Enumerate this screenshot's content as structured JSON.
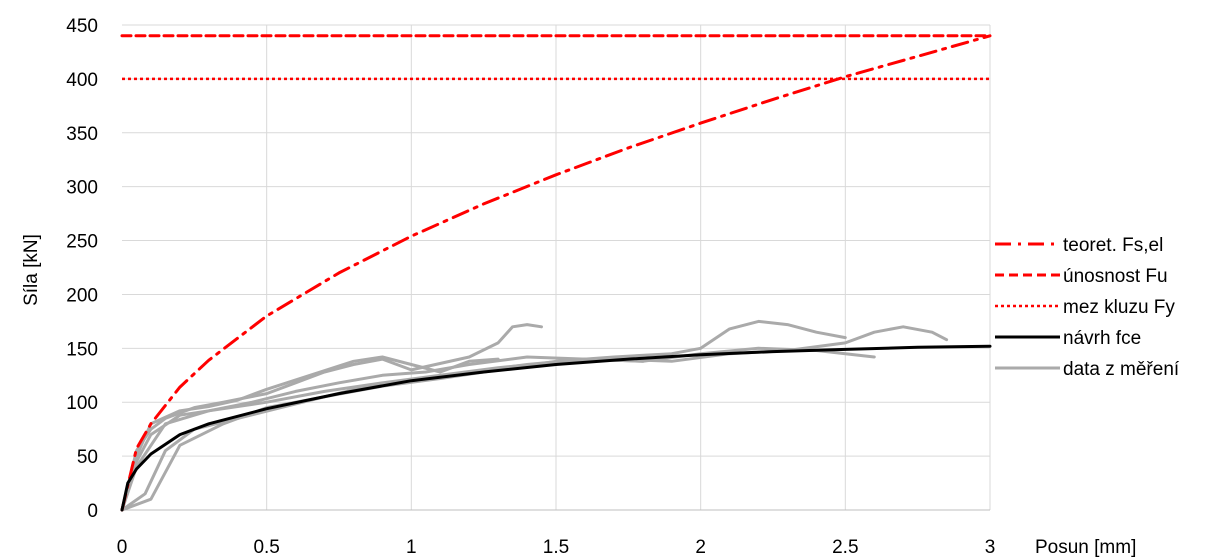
{
  "chart_data": {
    "type": "line",
    "xlabel": "Posun [mm]",
    "ylabel": "Síla [kN]",
    "xlim": [
      0,
      3
    ],
    "ylim": [
      0,
      450
    ],
    "xticks": [
      "0",
      "0.5",
      "1",
      "1.5",
      "2",
      "2.5",
      "3"
    ],
    "yticks": [
      "0",
      "50",
      "100",
      "150",
      "200",
      "250",
      "300",
      "350",
      "400",
      "450"
    ],
    "grid": true,
    "legend_position": "right",
    "series": [
      {
        "name": "teoret. Fs,el",
        "style": "dash-dot",
        "color": "#ff0000",
        "x": [
          0,
          0.05,
          0.1,
          0.2,
          0.3,
          0.5,
          0.75,
          1,
          1.25,
          1.5,
          1.75,
          2,
          2.25,
          2.5,
          2.75,
          3
        ],
        "y": [
          0,
          57,
          80,
          114,
          139,
          180,
          220,
          254,
          284,
          311,
          336,
          359,
          381,
          402,
          421,
          440
        ]
      },
      {
        "name": "únosnost Fu",
        "style": "dashed",
        "color": "#ff0000",
        "x": [
          0,
          3
        ],
        "y": [
          440,
          440
        ]
      },
      {
        "name": "mez kluzu Fy",
        "style": "dotted",
        "color": "#ff0000",
        "x": [
          0,
          3
        ],
        "y": [
          400,
          400
        ]
      },
      {
        "name": "návrh fce",
        "style": "solid",
        "color": "#000000",
        "x": [
          0,
          0.02,
          0.05,
          0.1,
          0.2,
          0.3,
          0.5,
          0.75,
          1,
          1.25,
          1.5,
          1.75,
          2,
          2.25,
          2.5,
          2.75,
          3
        ],
        "y": [
          0,
          25,
          38,
          52,
          70,
          80,
          94,
          108,
          120,
          128,
          135,
          140,
          144,
          147,
          149,
          151,
          152
        ]
      },
      {
        "name": "data z měření",
        "style": "solid",
        "color": "#aaaaaa",
        "curves": [
          {
            "x": [
              0,
              0.05,
              0.1,
              0.15,
              0.25,
              0.35,
              0.5,
              0.6,
              0.7,
              0.8,
              0.9,
              1.0,
              1.2,
              1.3,
              1.35,
              1.4,
              1.45
            ],
            "y": [
              0,
              55,
              75,
              85,
              95,
              100,
              108,
              118,
              128,
              135,
              140,
              130,
              142,
              155,
              170,
              172,
              170
            ]
          },
          {
            "x": [
              0,
              0.05,
              0.1,
              0.2,
              0.3,
              0.4,
              0.5,
              0.65,
              0.8,
              0.9,
              1.0,
              1.1,
              1.2,
              1.3
            ],
            "y": [
              0,
              50,
              80,
              92,
              96,
              102,
              112,
              125,
              138,
              142,
              135,
              128,
              138,
              140
            ]
          },
          {
            "x": [
              0,
              0.05,
              0.1,
              0.2,
              0.3,
              0.45,
              0.6,
              0.75,
              0.9,
              1.05,
              1.2,
              1.4,
              1.6,
              1.8
            ],
            "y": [
              0,
              45,
              70,
              88,
              92,
              100,
              110,
              118,
              125,
              128,
              135,
              142,
              140,
              138
            ]
          },
          {
            "x": [
              0,
              0.08,
              0.15,
              0.25,
              0.4,
              0.55,
              0.7,
              0.85,
              1.0,
              1.2,
              1.4,
              1.6,
              1.8,
              2.0,
              2.2,
              2.4,
              2.6
            ],
            "y": [
              0,
              15,
              55,
              75,
              85,
              95,
              105,
              115,
              120,
              128,
              135,
              140,
              138,
              145,
              150,
              148,
              142
            ]
          },
          {
            "x": [
              0,
              0.1,
              0.2,
              0.35,
              0.5,
              0.7,
              0.9,
              1.1,
              1.3,
              1.5,
              1.7,
              1.9,
              2.0,
              2.1,
              2.2,
              2.3,
              2.4,
              2.5
            ],
            "y": [
              0,
              10,
              60,
              80,
              95,
              105,
              115,
              122,
              130,
              138,
              142,
              145,
              150,
              168,
              175,
              172,
              165,
              160
            ]
          },
          {
            "x": [
              0,
              0.05,
              0.15,
              0.3,
              0.5,
              0.7,
              0.9,
              1.1,
              1.3,
              1.5,
              1.7,
              1.9,
              2.1,
              2.3,
              2.5,
              2.6,
              2.7,
              2.8,
              2.85
            ],
            "y": [
              0,
              40,
              80,
              92,
              100,
              110,
              118,
              125,
              132,
              137,
              140,
              138,
              145,
              148,
              155,
              165,
              170,
              165,
              158
            ]
          }
        ]
      }
    ]
  }
}
